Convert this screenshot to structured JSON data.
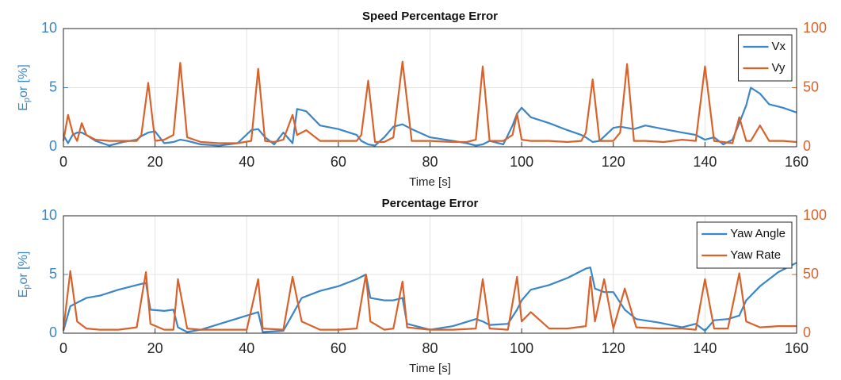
{
  "chart_data": [
    {
      "type": "line",
      "title": "Speed Percentage Error",
      "xlabel": "Time [s]",
      "ylabel": [
        "E",
        "p",
        "or [%]"
      ],
      "x": [
        0,
        1,
        2,
        3,
        4,
        5,
        7,
        10,
        13,
        16,
        17,
        18.5,
        20,
        22,
        24,
        25.5,
        27,
        30,
        34,
        38,
        41,
        42.5,
        44,
        46,
        48,
        50,
        51,
        53,
        56,
        60,
        64,
        65,
        66.5,
        68,
        70,
        72,
        74,
        76,
        80,
        85,
        88,
        90,
        91.5,
        93,
        96,
        98,
        99,
        100,
        102,
        106,
        110,
        113,
        114,
        115.5,
        117,
        120,
        121.5,
        123,
        124.5,
        127,
        131,
        135,
        138,
        140,
        142,
        144,
        146,
        147.5,
        149,
        150,
        152,
        154,
        157,
        160
      ],
      "series": [
        {
          "name": "Vx",
          "color": "#3a86c8",
          "values": [
            1,
            0.3,
            1.0,
            1.2,
            1.2,
            1.0,
            0.5,
            0.1,
            0.4,
            0.6,
            0.9,
            1.2,
            1.3,
            0.3,
            0.4,
            0.6,
            0.5,
            0.2,
            0.1,
            0.3,
            1.4,
            1.5,
            0.8,
            0.2,
            1.2,
            0.3,
            3.2,
            3.0,
            1.8,
            1.5,
            1.0,
            0.5,
            0.2,
            0.1,
            0.8,
            1.7,
            1.9,
            1.5,
            0.8,
            0.5,
            0.3,
            0.1,
            0.2,
            0.5,
            0.2,
            1.8,
            2.8,
            3.3,
            2.5,
            2.0,
            1.4,
            1.0,
            0.8,
            0.4,
            0.5,
            1.6,
            1.7,
            1.6,
            1.5,
            1.8,
            1.5,
            1.2,
            1.0,
            0.6,
            0.8,
            0.2,
            0.6,
            2.0,
            3.5,
            5.0,
            4.5,
            3.6,
            3.3,
            2.9
          ]
        },
        {
          "name": "Vy",
          "color": "#d9622b",
          "axis": "y2",
          "values": [
            5,
            27,
            12,
            5,
            20,
            10,
            6,
            5,
            5,
            5,
            10,
            54,
            5,
            6,
            10,
            71,
            8,
            4,
            3,
            3,
            5,
            66,
            5,
            4,
            6,
            27,
            10,
            14,
            5,
            5,
            5,
            10,
            56,
            4,
            4,
            8,
            72,
            5,
            5,
            4,
            4,
            6,
            68,
            5,
            5,
            10,
            28,
            6,
            5,
            5,
            4,
            5,
            12,
            57,
            5,
            5,
            12,
            70,
            5,
            5,
            4,
            6,
            5,
            68,
            5,
            4,
            3,
            25,
            5,
            5,
            18,
            5,
            5,
            4
          ]
        }
      ],
      "xlim": [
        0,
        160
      ],
      "xticks": [
        0,
        20,
        40,
        60,
        80,
        100,
        120,
        140,
        160
      ],
      "ylim": [
        0,
        10
      ],
      "yticks": [
        0,
        5,
        10
      ],
      "y2lim": [
        0,
        100
      ],
      "y2ticks": [
        0,
        50,
        100
      ],
      "grid": true,
      "legend": "northeast"
    },
    {
      "type": "line",
      "title": "Percentage Error",
      "xlabel": "Time [s]",
      "ylabel": [
        "E",
        "p",
        "or [%]"
      ],
      "x": [
        0,
        1.5,
        3,
        5,
        8,
        12,
        16,
        18,
        19,
        22,
        24,
        25,
        27,
        30,
        35,
        40,
        42.5,
        43.5,
        48,
        50,
        52,
        56,
        60,
        64,
        66,
        67,
        70,
        72,
        74,
        75,
        80,
        85,
        90,
        91.5,
        93,
        97,
        99,
        100,
        102,
        106,
        110,
        114,
        115,
        116,
        118,
        120,
        122.5,
        125,
        130,
        135,
        138,
        140,
        142,
        145,
        147.5,
        149,
        152,
        156,
        160
      ],
      "series": [
        {
          "name": "Yaw Angle",
          "color": "#3a86c8",
          "values": [
            0.2,
            2.3,
            2.6,
            3.0,
            3.2,
            3.7,
            4.1,
            4.3,
            2.0,
            1.9,
            2.0,
            0.5,
            0.1,
            0.3,
            0.9,
            1.5,
            1.8,
            0.1,
            0.2,
            1.6,
            3.0,
            3.6,
            4.0,
            4.6,
            5.0,
            3.0,
            2.8,
            2.8,
            3.0,
            0.8,
            0.3,
            0.6,
            1.2,
            1.0,
            0.7,
            0.8,
            2.0,
            2.8,
            3.7,
            4.1,
            4.7,
            5.5,
            5.6,
            3.8,
            3.5,
            3.5,
            2.0,
            1.2,
            0.9,
            0.5,
            0.8,
            0.2,
            1.1,
            1.2,
            1.5,
            2.8,
            4.0,
            5.2,
            6.0
          ]
        },
        {
          "name": "Yaw Rate",
          "color": "#d9622b",
          "axis": "y2",
          "values": [
            3,
            53,
            10,
            4,
            3,
            3,
            5,
            52,
            8,
            3,
            3,
            46,
            4,
            3,
            3,
            3,
            46,
            4,
            3,
            48,
            10,
            3,
            3,
            4,
            50,
            10,
            3,
            4,
            44,
            5,
            3,
            3,
            4,
            46,
            4,
            3,
            48,
            10,
            18,
            4,
            4,
            6,
            48,
            10,
            46,
            4,
            38,
            5,
            4,
            4,
            3,
            46,
            4,
            4,
            51,
            10,
            5,
            6,
            6
          ]
        }
      ],
      "xlim": [
        0,
        160
      ],
      "xticks": [
        0,
        20,
        40,
        60,
        80,
        100,
        120,
        140,
        160
      ],
      "ylim": [
        0,
        10
      ],
      "yticks": [
        0,
        5,
        10
      ],
      "y2lim": [
        0,
        100
      ],
      "y2ticks": [
        0,
        50,
        100
      ],
      "grid": true,
      "legend": "northeast"
    }
  ]
}
